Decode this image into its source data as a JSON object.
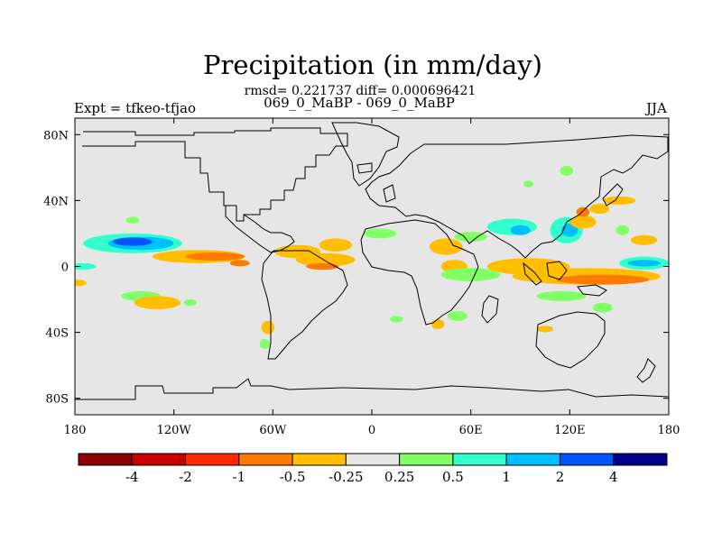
{
  "title": "Precipitation (in mm/day)",
  "subtitle_line1": "rmsd= 0.221737 diff= 0.000696421",
  "subtitle_line2": "069_0_MaBP - 069_0_MaBP",
  "left_label": "Expt = tfkeo-tfjao",
  "right_label": "JJA",
  "map": {
    "projection": "cylindrical-equidistant",
    "lon_range": [
      -180,
      180
    ],
    "lat_range": [
      -90,
      90
    ],
    "background_color": "#e6e6e6",
    "x_ticks": [
      {
        "value": -180,
        "label": "180"
      },
      {
        "value": -120,
        "label": "120W"
      },
      {
        "value": -60,
        "label": "60W"
      },
      {
        "value": 0,
        "label": "0"
      },
      {
        "value": 60,
        "label": "60E"
      },
      {
        "value": 120,
        "label": "120E"
      },
      {
        "value": 180,
        "label": "180"
      }
    ],
    "y_ticks": [
      {
        "value": 80,
        "label": "80N"
      },
      {
        "value": 40,
        "label": "40N"
      },
      {
        "value": 0,
        "label": "0"
      },
      {
        "value": -40,
        "label": "40S"
      },
      {
        "value": -80,
        "label": "80S"
      }
    ]
  },
  "colorbar": {
    "colors": [
      "#8b0000",
      "#c80000",
      "#ff2a00",
      "#ff7a00",
      "#ffbf00",
      "#e6e6e6",
      "#80ff66",
      "#33ffcc",
      "#00bfff",
      "#0055ff",
      "#00008b"
    ],
    "labels": [
      "-4",
      "-2",
      "-1",
      "-0.5",
      "-0.25",
      "0.25",
      "0.5",
      "1",
      "2",
      "4"
    ]
  },
  "anomaly_blobs": [
    {
      "lon": -145,
      "lat": 14,
      "rlon": 30,
      "rlat": 6,
      "level": 7
    },
    {
      "lon": -140,
      "lat": 14,
      "rlon": 20,
      "rlat": 4,
      "level": 8
    },
    {
      "lon": -145,
      "lat": 15,
      "rlon": 12,
      "rlat": 2.5,
      "level": 9
    },
    {
      "lon": -145,
      "lat": 28,
      "rlon": 4,
      "rlat": 2,
      "level": 6
    },
    {
      "lon": -105,
      "lat": 6,
      "rlon": 28,
      "rlat": 4,
      "level": 4
    },
    {
      "lon": -95,
      "lat": 6,
      "rlon": 18,
      "rlat": 2.5,
      "level": 3
    },
    {
      "lon": -80,
      "lat": 2,
      "rlon": 6,
      "rlat": 2,
      "level": 3
    },
    {
      "lon": -175,
      "lat": 0,
      "rlon": 8,
      "rlat": 2,
      "level": 7
    },
    {
      "lon": -140,
      "lat": -18,
      "rlon": 12,
      "rlat": 3,
      "level": 6
    },
    {
      "lon": -130,
      "lat": -22,
      "rlon": 14,
      "rlat": 4,
      "level": 4
    },
    {
      "lon": -110,
      "lat": -22,
      "rlon": 4,
      "rlat": 2,
      "level": 6
    },
    {
      "lon": -178,
      "lat": -10,
      "rlon": 5,
      "rlat": 2,
      "level": 4
    },
    {
      "lon": -45,
      "lat": 9,
      "rlon": 14,
      "rlat": 4,
      "level": 4
    },
    {
      "lon": -22,
      "lat": 13,
      "rlon": 10,
      "rlat": 4,
      "level": 4
    },
    {
      "lon": -28,
      "lat": 4,
      "rlon": 18,
      "rlat": 4,
      "level": 4
    },
    {
      "lon": -30,
      "lat": 0,
      "rlon": 10,
      "rlat": 2,
      "level": 3
    },
    {
      "lon": -63,
      "lat": -37,
      "rlon": 4,
      "rlat": 4,
      "level": 4
    },
    {
      "lon": -65,
      "lat": -47,
      "rlon": 3,
      "rlat": 3,
      "level": 6
    },
    {
      "lon": 5,
      "lat": 20,
      "rlon": 10,
      "rlat": 3,
      "level": 6
    },
    {
      "lon": 45,
      "lat": 12,
      "rlon": 10,
      "rlat": 5,
      "level": 4
    },
    {
      "lon": 50,
      "lat": 0,
      "rlon": 8,
      "rlat": 4,
      "level": 4
    },
    {
      "lon": 60,
      "lat": -5,
      "rlon": 18,
      "rlat": 4,
      "level": 6
    },
    {
      "lon": 60,
      "lat": 18,
      "rlon": 10,
      "rlat": 3,
      "level": 6
    },
    {
      "lon": 85,
      "lat": 24,
      "rlon": 15,
      "rlat": 5,
      "level": 7
    },
    {
      "lon": 90,
      "lat": 22,
      "rlon": 6,
      "rlat": 3,
      "level": 8
    },
    {
      "lon": 118,
      "lat": 22,
      "rlon": 10,
      "rlat": 8,
      "level": 7
    },
    {
      "lon": 120,
      "lat": 22,
      "rlon": 5,
      "rlat": 4,
      "level": 8
    },
    {
      "lon": 128,
      "lat": 27,
      "rlon": 8,
      "rlat": 4,
      "level": 4
    },
    {
      "lon": 138,
      "lat": 35,
      "rlon": 6,
      "rlat": 3,
      "level": 4
    },
    {
      "lon": 128,
      "lat": 33,
      "rlon": 4,
      "rlat": 3,
      "level": 3
    },
    {
      "lon": 150,
      "lat": 40,
      "rlon": 10,
      "rlat": 2.5,
      "level": 4
    },
    {
      "lon": 152,
      "lat": 22,
      "rlon": 4,
      "rlat": 3,
      "level": 6
    },
    {
      "lon": 165,
      "lat": 16,
      "rlon": 8,
      "rlat": 3,
      "level": 4
    },
    {
      "lon": 165,
      "lat": 2,
      "rlon": 15,
      "rlat": 4,
      "level": 7
    },
    {
      "lon": 165,
      "lat": 2,
      "rlon": 10,
      "rlat": 2,
      "level": 8
    },
    {
      "lon": 95,
      "lat": 0,
      "rlon": 25,
      "rlat": 5,
      "level": 4
    },
    {
      "lon": 130,
      "lat": -6,
      "rlon": 45,
      "rlat": 5,
      "level": 4
    },
    {
      "lon": 140,
      "lat": -8,
      "rlon": 28,
      "rlat": 3,
      "level": 3
    },
    {
      "lon": 115,
      "lat": -18,
      "rlon": 15,
      "rlat": 3,
      "level": 6
    },
    {
      "lon": 140,
      "lat": -25,
      "rlon": 6,
      "rlat": 3,
      "level": 6
    },
    {
      "lon": 105,
      "lat": -38,
      "rlon": 5,
      "rlat": 2,
      "level": 4
    },
    {
      "lon": 118,
      "lat": 58,
      "rlon": 4,
      "rlat": 3,
      "level": 6
    },
    {
      "lon": 95,
      "lat": 50,
      "rlon": 3,
      "rlat": 2,
      "level": 6
    },
    {
      "lon": 52,
      "lat": -30,
      "rlon": 6,
      "rlat": 3,
      "level": 6
    },
    {
      "lon": 40,
      "lat": -35,
      "rlon": 4,
      "rlat": 3,
      "level": 4
    },
    {
      "lon": 15,
      "lat": -32,
      "rlon": 4,
      "rlat": 2,
      "level": 6
    }
  ]
}
